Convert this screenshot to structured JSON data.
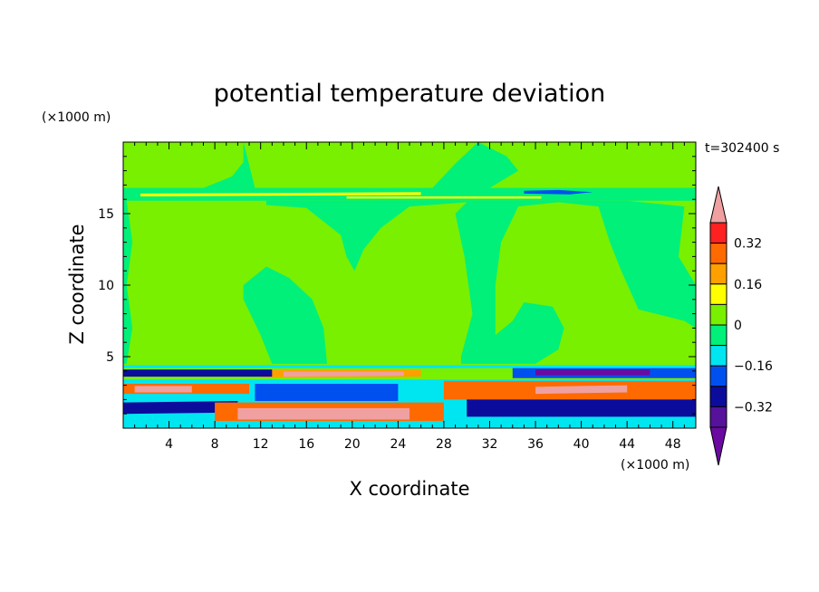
{
  "chart_data": {
    "type": "heatmap",
    "title": "potential temperature deviation",
    "xlabel": "X coordinate",
    "ylabel": "Z coordinate",
    "x_unit": "(×1000 m)",
    "y_unit": "(×1000 m)",
    "time_label": "t=302400 s",
    "xlim": [
      0,
      50
    ],
    "ylim": [
      0,
      20
    ],
    "x_ticks": [
      4,
      8,
      12,
      16,
      20,
      24,
      28,
      32,
      36,
      40,
      44,
      48
    ],
    "y_ticks": [
      5,
      10,
      15
    ],
    "x_tick_labels": [
      "4",
      "8",
      "12",
      "16",
      "20",
      "24",
      "28",
      "32",
      "36",
      "40",
      "44",
      "48"
    ],
    "y_tick_labels": [
      "5",
      "10",
      "15"
    ],
    "colorbar": {
      "levels": [
        -0.48,
        -0.4,
        -0.32,
        -0.24,
        -0.16,
        -0.08,
        0,
        0.08,
        0.16,
        0.24,
        0.32,
        0.4
      ],
      "labeled_levels": [
        {
          "value": 0.32,
          "label": "0.32"
        },
        {
          "value": 0.16,
          "label": "0.16"
        },
        {
          "value": 0,
          "label": "0"
        },
        {
          "value": -0.16,
          "label": "−0.16"
        },
        {
          "value": -0.32,
          "label": "−0.32"
        }
      ],
      "colors": [
        "#6a0aa0",
        "#56129a",
        "#0c0c9c",
        "#0050f0",
        "#00e6f0",
        "#00f07a",
        "#78f000",
        "#ffff00",
        "#ffa000",
        "#ff6a00",
        "#ff2020",
        "#f0a0a0"
      ]
    },
    "regions": [
      {
        "name": "background",
        "value": 0.04,
        "polygon": [
          [
            0,
            0
          ],
          [
            50,
            0
          ],
          [
            50,
            20
          ],
          [
            0,
            20
          ]
        ]
      },
      {
        "name": "lower-left-negative-tongue",
        "value": -0.04,
        "polygon": [
          [
            10.5,
            10
          ],
          [
            12.5,
            11.3
          ],
          [
            14.5,
            10.5
          ],
          [
            16.5,
            9
          ],
          [
            17.5,
            7
          ],
          [
            17.8,
            4.5
          ],
          [
            13,
            4.5
          ],
          [
            12,
            6.5
          ],
          [
            10.5,
            9
          ]
        ]
      },
      {
        "name": "top-negative-band",
        "value": -0.04,
        "polygon": [
          [
            0,
            15.9
          ],
          [
            50,
            15.9
          ],
          [
            50,
            16.8
          ],
          [
            0,
            16.8
          ]
        ]
      },
      {
        "name": "upper-left-negative",
        "value": -0.04,
        "polygon": [
          [
            10.5,
            20
          ],
          [
            10.5,
            18.6
          ],
          [
            9.5,
            17.6
          ],
          [
            7,
            16.8
          ],
          [
            11.5,
            16.8
          ],
          [
            10.5,
            20
          ]
        ]
      },
      {
        "name": "upper-middle-negative",
        "value": -0.04,
        "polygon": [
          [
            31,
            20
          ],
          [
            33.5,
            19
          ],
          [
            34.5,
            18
          ],
          [
            32,
            16.8
          ],
          [
            27,
            16.8
          ],
          [
            29,
            18.5
          ]
        ]
      },
      {
        "name": "central-negative-plume",
        "value": -0.04,
        "polygon": [
          [
            12.5,
            15.6
          ],
          [
            16,
            15.4
          ],
          [
            19,
            13.5
          ],
          [
            19.5,
            12
          ],
          [
            20.2,
            11
          ],
          [
            21,
            12.5
          ],
          [
            22.5,
            14
          ],
          [
            25,
            15.5
          ],
          [
            30,
            15.8
          ],
          [
            29,
            15
          ],
          [
            29.8,
            12
          ],
          [
            30.5,
            8
          ],
          [
            29.5,
            5
          ],
          [
            29.5,
            4.5
          ],
          [
            36,
            4.5
          ],
          [
            38,
            5.5
          ],
          [
            38.5,
            7
          ],
          [
            37.5,
            8.5
          ],
          [
            35,
            8.8
          ],
          [
            34,
            7.5
          ],
          [
            32.5,
            6.5
          ],
          [
            32.5,
            10
          ],
          [
            33,
            13
          ],
          [
            34.5,
            15.5
          ],
          [
            38,
            15.8
          ],
          [
            41.5,
            15.5
          ],
          [
            42.5,
            13
          ],
          [
            43.5,
            11
          ],
          [
            45,
            8.3
          ],
          [
            49,
            7.5
          ],
          [
            50,
            7
          ],
          [
            50,
            10
          ],
          [
            48.5,
            12
          ],
          [
            49,
            15.5
          ],
          [
            44,
            15.9
          ],
          [
            12.5,
            15.9
          ]
        ]
      },
      {
        "name": "left-edge-negative",
        "value": -0.04,
        "polygon": [
          [
            0.3,
            4.5
          ],
          [
            0.8,
            7
          ],
          [
            0.3,
            10
          ],
          [
            0.8,
            13
          ],
          [
            0.3,
            15.9
          ],
          [
            0,
            15.9
          ],
          [
            0,
            4.5
          ]
        ]
      },
      {
        "name": "upper-thin-positive-streak",
        "value": 0.12,
        "polygon": [
          [
            1.5,
            16.2
          ],
          [
            26,
            16.3
          ],
          [
            26,
            16.5
          ],
          [
            1.5,
            16.4
          ]
        ]
      },
      {
        "name": "upper-thin-yellow",
        "value": 0.12,
        "polygon": [
          [
            19.5,
            16.05
          ],
          [
            36.5,
            16.05
          ],
          [
            36.5,
            16.2
          ],
          [
            19.5,
            16.2
          ]
        ]
      },
      {
        "name": "upper-thin-blue",
        "value": -0.2,
        "polygon": [
          [
            35,
            16.4
          ],
          [
            39,
            16.35
          ],
          [
            41,
            16.5
          ],
          [
            38,
            16.65
          ],
          [
            35,
            16.6
          ]
        ]
      },
      {
        "name": "low-level-cyan-base",
        "value": -0.12,
        "polygon": [
          [
            0,
            0
          ],
          [
            50,
            0
          ],
          [
            50,
            4.4
          ],
          [
            0,
            4.4
          ]
        ]
      },
      {
        "name": "low-level-green-mix",
        "value": 0.04,
        "polygon": [
          [
            0,
            3.4
          ],
          [
            50,
            3.4
          ],
          [
            50,
            4.2
          ],
          [
            0,
            4.2
          ]
        ]
      },
      {
        "name": "low-level-orange-upper",
        "value": 0.2,
        "polygon": [
          [
            12,
            3.55
          ],
          [
            26,
            3.6
          ],
          [
            26,
            4.1
          ],
          [
            12,
            4.1
          ]
        ]
      },
      {
        "name": "low-level-pink-upper",
        "value": 0.44,
        "polygon": [
          [
            14,
            3.6
          ],
          [
            24.5,
            3.65
          ],
          [
            24.5,
            3.95
          ],
          [
            14,
            3.95
          ]
        ]
      },
      {
        "name": "low-level-blue-upper-right",
        "value": -0.24,
        "polygon": [
          [
            34,
            3.5
          ],
          [
            50,
            3.5
          ],
          [
            50,
            4.2
          ],
          [
            34,
            4.2
          ]
        ]
      },
      {
        "name": "low-level-purple-upper-right",
        "value": -0.44,
        "polygon": [
          [
            36,
            3.7
          ],
          [
            46,
            3.7
          ],
          [
            46,
            4.1
          ],
          [
            36,
            4.1
          ]
        ]
      },
      {
        "name": "low-level-blue-left",
        "value": -0.32,
        "polygon": [
          [
            0,
            3.6
          ],
          [
            13,
            3.6
          ],
          [
            13,
            4.1
          ],
          [
            0,
            4.1
          ]
        ]
      },
      {
        "name": "low-level-orange-left",
        "value": 0.28,
        "polygon": [
          [
            0,
            2.4
          ],
          [
            11,
            2.4
          ],
          [
            11,
            3.1
          ],
          [
            0,
            3.1
          ]
        ]
      },
      {
        "name": "low-level-pink-left",
        "value": 0.44,
        "polygon": [
          [
            1,
            2.5
          ],
          [
            6,
            2.5
          ],
          [
            6,
            2.95
          ],
          [
            1,
            2.95
          ]
        ]
      },
      {
        "name": "low-level-purple-center",
        "value": -0.44,
        "polygon": [
          [
            12.5,
            2.05
          ],
          [
            23,
            2.1
          ],
          [
            23,
            2.95
          ],
          [
            12.5,
            2.95
          ]
        ]
      },
      {
        "name": "low-level-blue-center",
        "value": -0.24,
        "polygon": [
          [
            11.5,
            1.9
          ],
          [
            24,
            1.9
          ],
          [
            24,
            3.1
          ],
          [
            11.5,
            3.1
          ]
        ]
      },
      {
        "name": "low-level-orange-right",
        "value": 0.28,
        "polygon": [
          [
            28,
            2
          ],
          [
            50,
            2
          ],
          [
            50,
            3.3
          ],
          [
            28,
            3.3
          ]
        ]
      },
      {
        "name": "low-level-pink-right",
        "value": 0.44,
        "polygon": [
          [
            36,
            2.4
          ],
          [
            44,
            2.5
          ],
          [
            44,
            3
          ],
          [
            36,
            2.9
          ]
        ]
      },
      {
        "name": "low-level-blue-bottom-left",
        "value": -0.32,
        "polygon": [
          [
            0,
            1
          ],
          [
            10,
            1.1
          ],
          [
            10,
            1.9
          ],
          [
            0,
            1.8
          ]
        ]
      },
      {
        "name": "low-level-orange-bottom",
        "value": 0.28,
        "polygon": [
          [
            8,
            0.5
          ],
          [
            28,
            0.5
          ],
          [
            28,
            1.8
          ],
          [
            8,
            1.8
          ]
        ]
      },
      {
        "name": "low-level-pink-bottom",
        "value": 0.44,
        "polygon": [
          [
            10,
            0.6
          ],
          [
            25,
            0.6
          ],
          [
            25,
            1.4
          ],
          [
            10,
            1.4
          ]
        ]
      },
      {
        "name": "low-level-purple-bottom-right",
        "value": -0.44,
        "polygon": [
          [
            32,
            1
          ],
          [
            50,
            1
          ],
          [
            50,
            1.9
          ],
          [
            32,
            1.9
          ]
        ]
      },
      {
        "name": "low-level-blue-bottom-right",
        "value": -0.32,
        "polygon": [
          [
            30,
            0.8
          ],
          [
            50,
            0.8
          ],
          [
            50,
            2
          ],
          [
            30,
            2
          ]
        ]
      }
    ]
  }
}
